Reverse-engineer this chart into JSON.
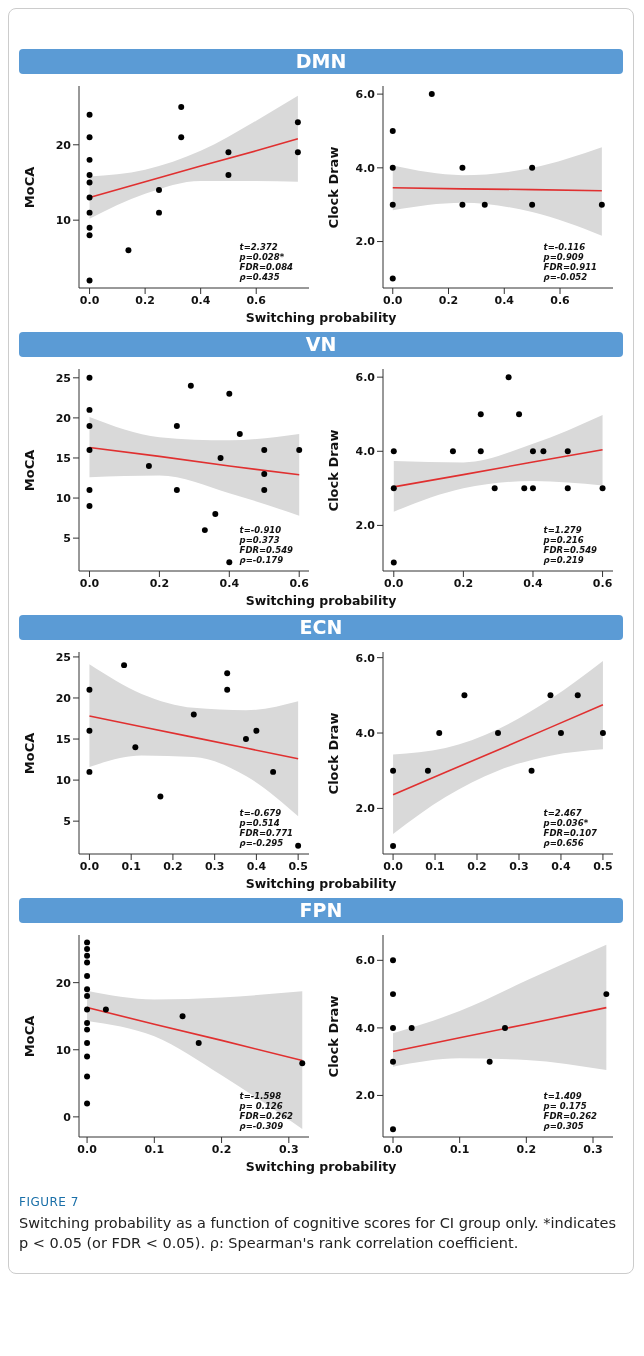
{
  "chart_data": [
    {
      "type": "scatter",
      "title": "DMN",
      "xlabel": "Switching probability",
      "ylabel": "MoCA",
      "xlim": [
        -0.038,
        0.79
      ],
      "ylim": [
        1,
        27.8
      ],
      "xticks": [
        {
          "value": 0,
          "label": "0.0"
        },
        {
          "value": 0.2,
          "label": "0.2"
        },
        {
          "value": 0.4,
          "label": "0.4"
        },
        {
          "value": 0.6,
          "label": "0.6"
        }
      ],
      "yticks": [
        10,
        20
      ],
      "grid": false,
      "annotations": [
        "t=2.372",
        "p=0.028*",
        "FDR=0.084",
        "ρ=0.435"
      ],
      "series": [
        {
          "type": "scatter",
          "marker": "circle",
          "color": "#000000",
          "x": [
            0,
            0,
            0,
            0,
            0,
            0,
            0,
            0,
            0,
            0,
            0.14,
            0.25,
            0.25,
            0.33,
            0.33,
            0.5,
            0.5,
            0.75,
            0.75
          ],
          "values": [
            24,
            21,
            18,
            16,
            15,
            13,
            11,
            9,
            8,
            2,
            6,
            14,
            11,
            25,
            21,
            19,
            16,
            23,
            19
          ]
        },
        {
          "type": "line",
          "color": "#e03030",
          "x": [
            0,
            0.2,
            0.4,
            0.6,
            0.75
          ],
          "values": [
            13,
            15.1,
            17.2,
            19.2,
            20.8
          ],
          "lower": [
            10.2,
            13.5,
            15.2,
            15.2,
            15.1
          ],
          "upper": [
            15.8,
            16.7,
            19.2,
            23.2,
            26.5
          ]
        }
      ]
    },
    {
      "type": "scatter",
      "ylabel": "Clock Draw",
      "xlim": [
        -0.035,
        0.79
      ],
      "ylim": [
        0.74,
        6.22
      ],
      "xticks": [
        {
          "value": 0,
          "label": "0.0"
        },
        {
          "value": 0.2,
          "label": "0.2"
        },
        {
          "value": 0.4,
          "label": "0.4"
        },
        {
          "value": 0.6,
          "label": "0.6"
        }
      ],
      "yticks": [
        {
          "value": 2,
          "label": "2.0"
        },
        {
          "value": 4,
          "label": "4.0"
        },
        {
          "value": 6,
          "label": "6.0"
        }
      ],
      "grid": false,
      "annotations": [
        "t=-0.116",
        "p=0.909",
        "FDR=0.911",
        "ρ=-0.052"
      ],
      "series": [
        {
          "type": "scatter",
          "marker": "circle",
          "color": "#000000",
          "x": [
            0,
            0,
            0,
            0,
            0.14,
            0.25,
            0.25,
            0.33,
            0.5,
            0.5,
            0.75
          ],
          "values": [
            5,
            4,
            3,
            1,
            6,
            4,
            3,
            3,
            4,
            3,
            3
          ]
        },
        {
          "type": "line",
          "color": "#e03030",
          "x": [
            0,
            0.25,
            0.5,
            0.75
          ],
          "values": [
            3.46,
            3.43,
            3.41,
            3.38
          ],
          "lower": [
            2.85,
            3.05,
            2.8,
            2.16
          ],
          "upper": [
            4.06,
            3.8,
            4.0,
            4.56
          ]
        }
      ]
    },
    {
      "type": "scatter",
      "title": "VN",
      "xlabel": "Switching probability",
      "ylabel": "MoCA",
      "xlim": [
        -0.03,
        0.628
      ],
      "ylim": [
        0.9,
        26.1
      ],
      "xticks": [
        {
          "value": 0,
          "label": "0.0"
        },
        {
          "value": 0.2,
          "label": "0.2"
        },
        {
          "value": 0.4,
          "label": "0.4"
        },
        {
          "value": 0.6,
          "label": "0.6"
        }
      ],
      "yticks": [
        5,
        10,
        15,
        20,
        25
      ],
      "grid": false,
      "annotations": [
        "t=-0.910",
        "p=0.373",
        "FDR=0.549",
        "ρ=-0.179"
      ],
      "series": [
        {
          "type": "scatter",
          "marker": "circle",
          "color": "#000000",
          "x": [
            0,
            0,
            0,
            0,
            0,
            0,
            0.17,
            0.25,
            0.25,
            0.29,
            0.33,
            0.36,
            0.375,
            0.4,
            0.4,
            0.43,
            0.5,
            0.5,
            0.5,
            0.6
          ],
          "values": [
            25,
            21,
            19,
            16,
            11,
            9,
            14,
            19,
            11,
            24,
            6,
            8,
            15,
            23,
            2,
            18,
            16,
            13,
            11,
            16
          ]
        },
        {
          "type": "line",
          "color": "#e03030",
          "x": [
            0,
            0.2,
            0.4,
            0.6
          ],
          "values": [
            16.3,
            15.2,
            14.0,
            12.9
          ],
          "lower": [
            12.6,
            12.8,
            10.6,
            7.8
          ],
          "upper": [
            20.1,
            17.6,
            17.2,
            18.0
          ]
        }
      ]
    },
    {
      "type": "scatter",
      "ylabel": "Clock Draw",
      "xlim": [
        -0.031,
        0.63
      ],
      "ylim": [
        0.77,
        6.22
      ],
      "xticks": [
        {
          "value": 0,
          "label": "0.0"
        },
        {
          "value": 0.2,
          "label": "0.2"
        },
        {
          "value": 0.4,
          "label": "0.4"
        },
        {
          "value": 0.6,
          "label": "0.6"
        }
      ],
      "yticks": [
        {
          "value": 2,
          "label": "2.0"
        },
        {
          "value": 4,
          "label": "4.0"
        },
        {
          "value": 6,
          "label": "6.0"
        }
      ],
      "grid": false,
      "annotations": [
        "t=1.279",
        "p=0.216",
        "FDR=0.549",
        "ρ=0.219"
      ],
      "series": [
        {
          "type": "scatter",
          "marker": "circle",
          "color": "#000000",
          "x": [
            0,
            0,
            0,
            0.17,
            0.25,
            0.25,
            0.29,
            0.33,
            0.36,
            0.375,
            0.4,
            0.4,
            0.43,
            0.5,
            0.5,
            0.6
          ],
          "values": [
            4,
            3,
            1,
            4,
            5,
            4,
            3,
            6,
            5,
            3,
            4,
            3,
            4,
            4,
            3,
            3
          ]
        },
        {
          "type": "line",
          "color": "#e03030",
          "x": [
            0,
            0.2,
            0.4,
            0.6
          ],
          "values": [
            3.04,
            3.37,
            3.71,
            4.04
          ],
          "lower": [
            2.37,
            3.0,
            3.2,
            3.08
          ],
          "upper": [
            3.74,
            3.7,
            4.2,
            4.98
          ]
        }
      ]
    },
    {
      "type": "scatter",
      "title": "ECN",
      "xlabel": "Switching probability",
      "ylabel": "MoCA",
      "xlim": [
        -0.025,
        0.526
      ],
      "ylim": [
        1,
        25.6
      ],
      "xticks": [
        {
          "value": 0,
          "label": "0.0"
        },
        {
          "value": 0.1,
          "label": "0.1"
        },
        {
          "value": 0.2,
          "label": "0.2"
        },
        {
          "value": 0.3,
          "label": "0.3"
        },
        {
          "value": 0.4,
          "label": "0.4"
        },
        {
          "value": 0.5,
          "label": "0.5"
        }
      ],
      "yticks": [
        5,
        10,
        15,
        20,
        25
      ],
      "grid": false,
      "annotations": [
        "t=-0.679",
        "p=0.514",
        "FDR=0.771",
        "ρ=-0.295"
      ],
      "series": [
        {
          "type": "scatter",
          "marker": "circle",
          "color": "#000000",
          "x": [
            0,
            0,
            0,
            0.083,
            0.11,
            0.17,
            0.25,
            0.33,
            0.33,
            0.375,
            0.4,
            0.44,
            0.5
          ],
          "values": [
            21,
            16,
            11,
            24,
            14,
            8,
            18,
            23,
            21,
            15,
            16,
            11,
            2
          ]
        },
        {
          "type": "line",
          "color": "#e03030",
          "x": [
            0,
            0.125,
            0.25,
            0.375,
            0.5
          ],
          "values": [
            17.8,
            16.5,
            15.2,
            13.9,
            12.6
          ],
          "lower": [
            11.6,
            13.0,
            12.8,
            10.5,
            5.6
          ],
          "upper": [
            24.1,
            20.5,
            18.8,
            18.5,
            19.6
          ]
        }
      ]
    },
    {
      "type": "scatter",
      "ylabel": "Clock Draw",
      "xlim": [
        -0.024,
        0.524
      ],
      "ylim": [
        0.79,
        6.15
      ],
      "xticks": [
        {
          "value": 0,
          "label": "0.0"
        },
        {
          "value": 0.1,
          "label": "0.1"
        },
        {
          "value": 0.2,
          "label": "0.2"
        },
        {
          "value": 0.3,
          "label": "0.3"
        },
        {
          "value": 0.4,
          "label": "0.4"
        },
        {
          "value": 0.5,
          "label": "0.5"
        }
      ],
      "yticks": [
        {
          "value": 2,
          "label": "2.0"
        },
        {
          "value": 4,
          "label": "4.0"
        },
        {
          "value": 6,
          "label": "6.0"
        }
      ],
      "grid": false,
      "annotations": [
        "t=2.467",
        "p=0.036*",
        "FDR=0.107",
        "ρ=0.656"
      ],
      "series": [
        {
          "type": "scatter",
          "marker": "circle",
          "color": "#000000",
          "x": [
            0,
            0,
            0.083,
            0.11,
            0.17,
            0.25,
            0.33,
            0.375,
            0.4,
            0.44,
            0.5
          ],
          "values": [
            3,
            1,
            3,
            4,
            5,
            4,
            3,
            5,
            4,
            5,
            4
          ]
        },
        {
          "type": "line",
          "color": "#e03030",
          "x": [
            0,
            0.125,
            0.25,
            0.375,
            0.5
          ],
          "values": [
            2.36,
            2.96,
            3.55,
            4.15,
            4.75
          ],
          "lower": [
            1.32,
            2.3,
            3.0,
            3.4,
            3.57
          ],
          "upper": [
            3.43,
            3.6,
            4.1,
            4.9,
            5.91
          ]
        }
      ]
    },
    {
      "type": "scatter",
      "title": "FPN",
      "xlabel": "Switching probability",
      "ylabel": "MoCA",
      "xlim": [
        -0.012,
        0.33
      ],
      "ylim": [
        -3,
        27.1
      ],
      "xticks": [
        {
          "value": 0,
          "label": "0.0"
        },
        {
          "value": 0.1,
          "label": "0.1"
        },
        {
          "value": 0.2,
          "label": "0.2"
        },
        {
          "value": 0.3,
          "label": "0.3"
        }
      ],
      "yticks": [
        0,
        10,
        20
      ],
      "grid": false,
      "annotations": [
        "t=-1.598",
        "p= 0.126",
        "FDR=0.262",
        "ρ=-0.309"
      ],
      "series": [
        {
          "type": "scatter",
          "marker": "circle",
          "color": "#000000",
          "x": [
            0,
            0,
            0,
            0,
            0,
            0,
            0,
            0,
            0,
            0,
            0,
            0,
            0,
            0,
            0.028,
            0.142,
            0.166,
            0.32
          ],
          "values": [
            26,
            25,
            24,
            23,
            21,
            19,
            18,
            16,
            14,
            13,
            11,
            9,
            6,
            2,
            16,
            15,
            11,
            8
          ]
        },
        {
          "type": "line",
          "color": "#e03030",
          "x": [
            0,
            0.1,
            0.2,
            0.32
          ],
          "values": [
            16.3,
            13.8,
            11.4,
            8.4
          ],
          "lower": [
            14.3,
            12.0,
            6.2,
            -1.8
          ],
          "upper": [
            18.8,
            17.5,
            17.8,
            18.7
          ]
        }
      ]
    },
    {
      "type": "scatter",
      "ylabel": "Clock Draw",
      "xlim": [
        -0.015,
        0.33
      ],
      "ylim": [
        0.77,
        6.75
      ],
      "xticks": [
        {
          "value": 0,
          "label": "0.0"
        },
        {
          "value": 0.1,
          "label": "0.1"
        },
        {
          "value": 0.2,
          "label": "0.2"
        },
        {
          "value": 0.3,
          "label": "0.3"
        }
      ],
      "yticks": [
        {
          "value": 2,
          "label": "2.0"
        },
        {
          "value": 4,
          "label": "4.0"
        },
        {
          "value": 6,
          "label": "6.0"
        }
      ],
      "grid": false,
      "annotations": [
        "t=1.409",
        "p= 0.175",
        "FDR=0.262",
        "ρ=0.305"
      ],
      "series": [
        {
          "type": "scatter",
          "marker": "circle",
          "color": "#000000",
          "x": [
            0,
            0,
            0,
            0,
            0,
            0.028,
            0.145,
            0.168,
            0.32
          ],
          "values": [
            6,
            5,
            4,
            3,
            1,
            4,
            3,
            4,
            5
          ]
        },
        {
          "type": "line",
          "color": "#e03030",
          "x": [
            0,
            0.1,
            0.2,
            0.32
          ],
          "values": [
            3.3,
            3.71,
            4.11,
            4.6
          ],
          "lower": [
            2.85,
            3.1,
            3.05,
            2.75
          ],
          "upper": [
            3.84,
            4.5,
            5.4,
            6.46
          ]
        }
      ]
    },
    {
      "type": "other",
      "title": "FIGURE 7",
      "annotations": [
        "Switching probability as a function of cognitive scores for CI group only. *indicates p < 0.05 (or FDR < 0.05). ρ: Spearman's rank correlation coefficient."
      ]
    }
  ]
}
